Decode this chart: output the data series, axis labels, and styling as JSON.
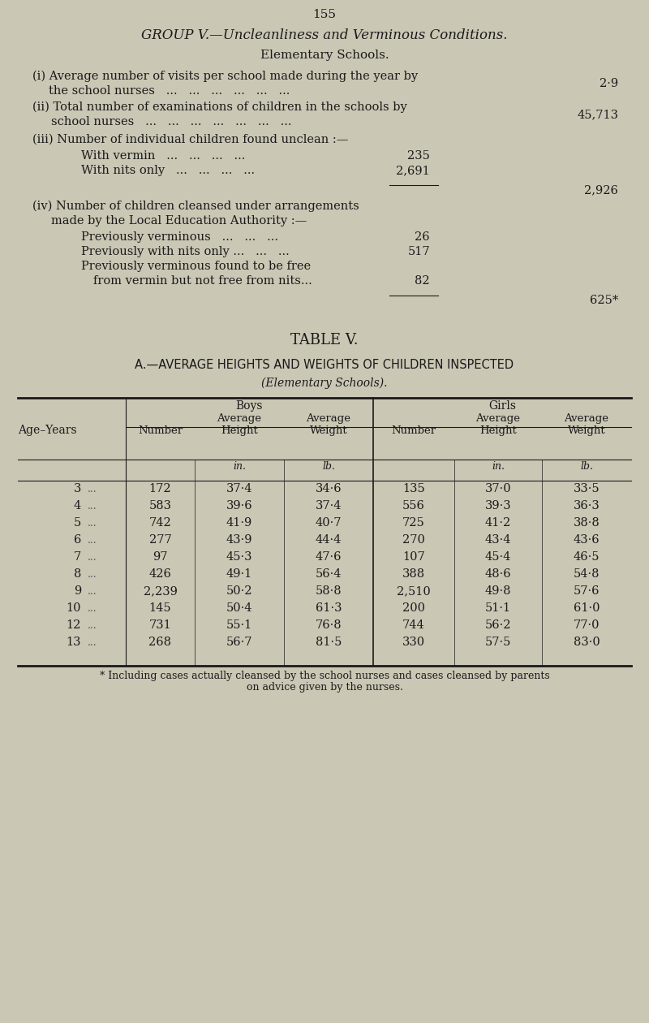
{
  "page_number": "155",
  "bg_color": "#cbc7b5",
  "text_color": "#1a1a1a",
  "group_title": "GROUP V.—Uncleanliness and Verminous Conditions.",
  "section_title": "Elementary Schools.",
  "table_title": "TABLE V.",
  "table_subtitle": "A.—AVERAGE HEIGHTS AND WEIGHTS OF CHILDREN INSPECTED",
  "table_sub2": "(Elementary Schools).",
  "col_headers_top": [
    "Boys",
    "Girls"
  ],
  "table_data": [
    [
      "3",
      "...",
      "172",
      "37·4",
      "34·6",
      "135",
      "37·0",
      "33·5"
    ],
    [
      "4",
      "...",
      "583",
      "39·6",
      "37·4",
      "556",
      "39·3",
      "36·3"
    ],
    [
      "5",
      "...",
      "742",
      "41·9",
      "40·7",
      "725",
      "41·2",
      "38·8"
    ],
    [
      "6",
      "...",
      "277",
      "43·9",
      "44·4",
      "270",
      "43·4",
      "43·6"
    ],
    [
      "7",
      "...",
      "97",
      "45·3",
      "47·6",
      "107",
      "45·4",
      "46·5"
    ],
    [
      "8",
      "...",
      "426",
      "49·1",
      "56·4",
      "388",
      "48·6",
      "54·8"
    ],
    [
      "9",
      "...",
      "2,239",
      "50·2",
      "58·8",
      "2,510",
      "49·8",
      "57·6"
    ],
    [
      "10",
      "...",
      "145",
      "50·4",
      "61·3",
      "200",
      "51·1",
      "61·0"
    ],
    [
      "12",
      "...",
      "731",
      "55·1",
      "76·8",
      "744",
      "56·2",
      "77·0"
    ],
    [
      "13",
      "...",
      "268",
      "56·7",
      "81·5",
      "330",
      "57·5",
      "83·0"
    ]
  ],
  "footnote_line1": "* Including cases actually cleansed by the school nurses and cases cleansed by parents",
  "footnote_line2": "on advice given by the nurses."
}
